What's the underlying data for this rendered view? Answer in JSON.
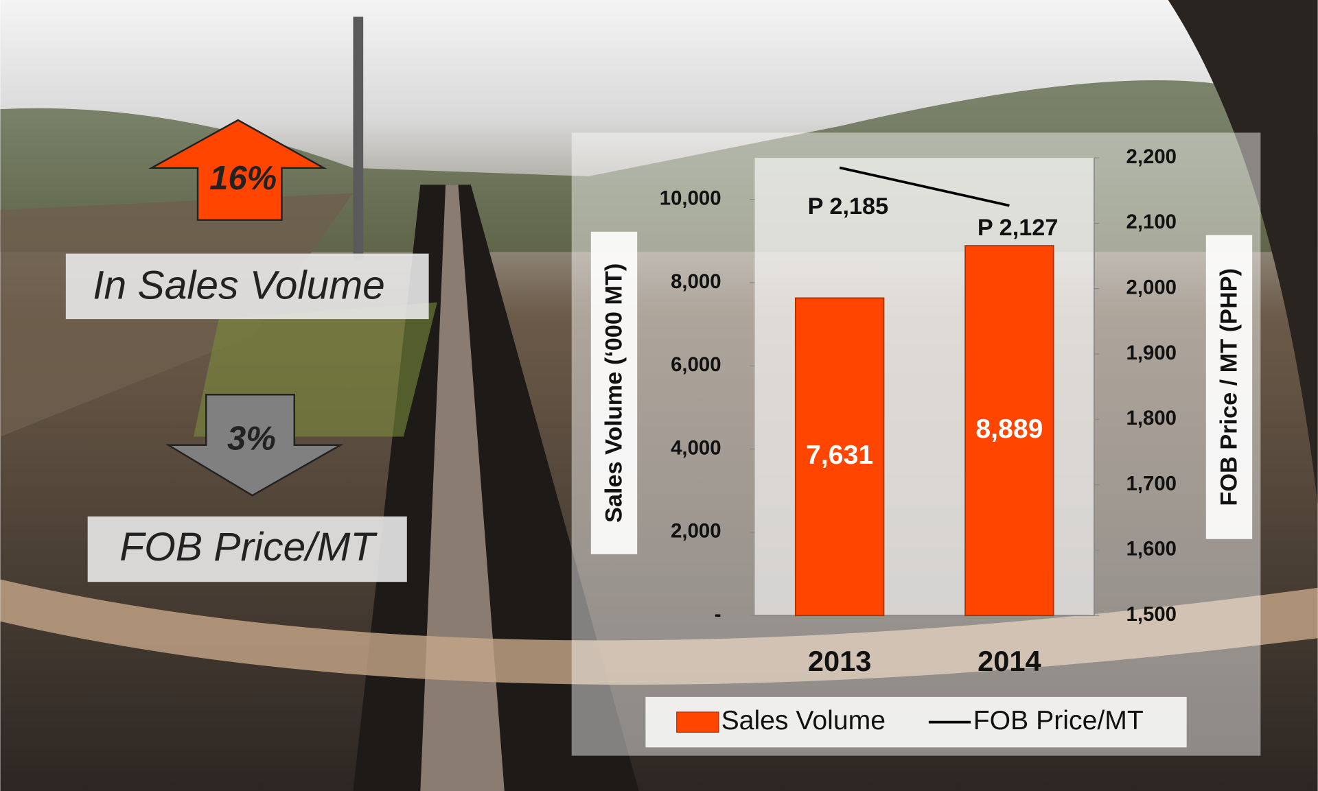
{
  "chart_data": {
    "type": "bar",
    "categories": [
      "2013",
      "2014"
    ],
    "series": [
      {
        "name": "Sales Volume",
        "type": "bar",
        "color": "#ff4500",
        "values": [
          7631,
          8889
        ],
        "value_labels": [
          "7,631",
          "8,889"
        ]
      },
      {
        "name": "FOB Price/MT",
        "type": "line",
        "axis": "y2",
        "color": "#000000",
        "values": [
          2185,
          2127
        ],
        "value_labels": [
          "P 2,185",
          "P 2,127"
        ]
      }
    ],
    "ylabel": "Sales Volume (‘000 MT)",
    "y2label": "FOB Price / MT  (PHP)",
    "ylim": [
      0,
      11000
    ],
    "yticks": [
      {
        "value": 0,
        "label": "-"
      },
      {
        "value": 2000,
        "label": "2,000"
      },
      {
        "value": 4000,
        "label": "4,000"
      },
      {
        "value": 6000,
        "label": "6,000"
      },
      {
        "value": 8000,
        "label": "8,000"
      },
      {
        "value": 10000,
        "label": "10,000"
      }
    ],
    "y2lim": [
      1500,
      2200
    ],
    "y2ticks": [
      {
        "value": 1500,
        "label": "1,500"
      },
      {
        "value": 1600,
        "label": "1,600"
      },
      {
        "value": 1700,
        "label": "1,700"
      },
      {
        "value": 1800,
        "label": "1,800"
      },
      {
        "value": 1900,
        "label": "1,900"
      },
      {
        "value": 2000,
        "label": "2,000"
      },
      {
        "value": 2100,
        "label": "2,100"
      },
      {
        "value": 2200,
        "label": "2,200"
      }
    ],
    "grid": false,
    "legend": "bottom",
    "annotations": [
      {
        "text": "16%",
        "color": "#ff4500"
      },
      {
        "text": "In Sales Volume"
      },
      {
        "text": "3%",
        "color": "#808080"
      },
      {
        "text": "FOB Price/MT"
      }
    ]
  }
}
